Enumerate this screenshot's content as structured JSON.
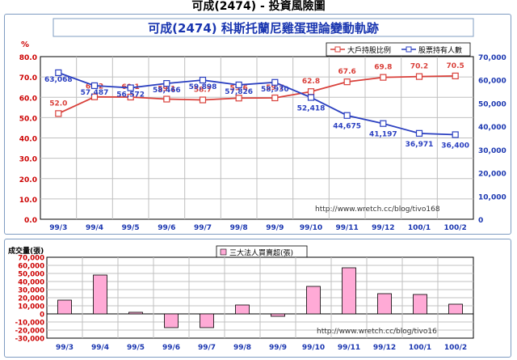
{
  "page_title": "可成(2474) - 投資風險圖",
  "chart_data": [
    {
      "type": "line",
      "title": "可成(2474) 科斯托蘭尼雞蛋理論變動軌跡",
      "ylabel_left": "%",
      "categories": [
        "99/3",
        "99/4",
        "99/5",
        "99/6",
        "99/7",
        "99/8",
        "99/9",
        "99/10",
        "99/11",
        "99/12",
        "100/1",
        "100/2"
      ],
      "ylim_left": [
        0,
        80
      ],
      "yticks_left": [
        "0.0",
        "10.0",
        "20.0",
        "30.0",
        "40.0",
        "50.0",
        "60.0",
        "70.0",
        "80.0"
      ],
      "ylim_right": [
        0,
        70000
      ],
      "yticks_right": [
        "0",
        "10,000",
        "20,000",
        "30,000",
        "40,000",
        "50,000",
        "60,000",
        "70,000"
      ],
      "series": [
        {
          "name": "大戶持股比例",
          "axis": "left",
          "color": "#d9403a",
          "values": [
            52.0,
            60.2,
            60.1,
            59.1,
            58.7,
            59.6,
            59.7,
            62.8,
            67.6,
            69.8,
            70.2,
            70.5
          ],
          "labels": [
            "52.0",
            "60.2",
            "60.1",
            "59.1",
            "58.7",
            "59.6",
            "59.7",
            "62.8",
            "67.6",
            "69.8",
            "70.2",
            "70.5"
          ]
        },
        {
          "name": "股票持有人數",
          "axis": "right",
          "color": "#2a3fc0",
          "values": [
            63068,
            57487,
            56572,
            58466,
            59898,
            57826,
            58930,
            52418,
            44675,
            41197,
            36971,
            36400
          ],
          "labels": [
            "63,068",
            "57,487",
            "56,572",
            "58,466",
            "59,898",
            "57,826",
            "58,930",
            "52,418",
            "44,675",
            "41,197",
            "36,971",
            "36,400"
          ]
        }
      ],
      "watermark": "http://www.wretch.cc/blog/tivo168",
      "grid": true,
      "legend_position": "top-right"
    },
    {
      "type": "bar",
      "ylabel": "成交量(張)",
      "categories": [
        "99/3",
        "99/4",
        "99/5",
        "99/6",
        "99/7",
        "99/8",
        "99/9",
        "99/10",
        "99/11",
        "99/12",
        "100/1",
        "100/2"
      ],
      "ylim": [
        -30000,
        70000
      ],
      "yticks": [
        "-30,000",
        "-20,000",
        "-10,000",
        "0",
        "10,000",
        "20,000",
        "30,000",
        "40,000",
        "50,000",
        "60,000",
        "70,000"
      ],
      "series": [
        {
          "name": "三大法人買賣超(張)",
          "color": "#ffaad6",
          "values": [
            17000,
            48000,
            2000,
            -17000,
            -17000,
            11000,
            -3000,
            34000,
            57000,
            25000,
            24000,
            12000
          ]
        }
      ],
      "watermark": "http://www.wretch.cc/blog/tivo16",
      "grid": true,
      "legend_position": "top-center"
    }
  ]
}
